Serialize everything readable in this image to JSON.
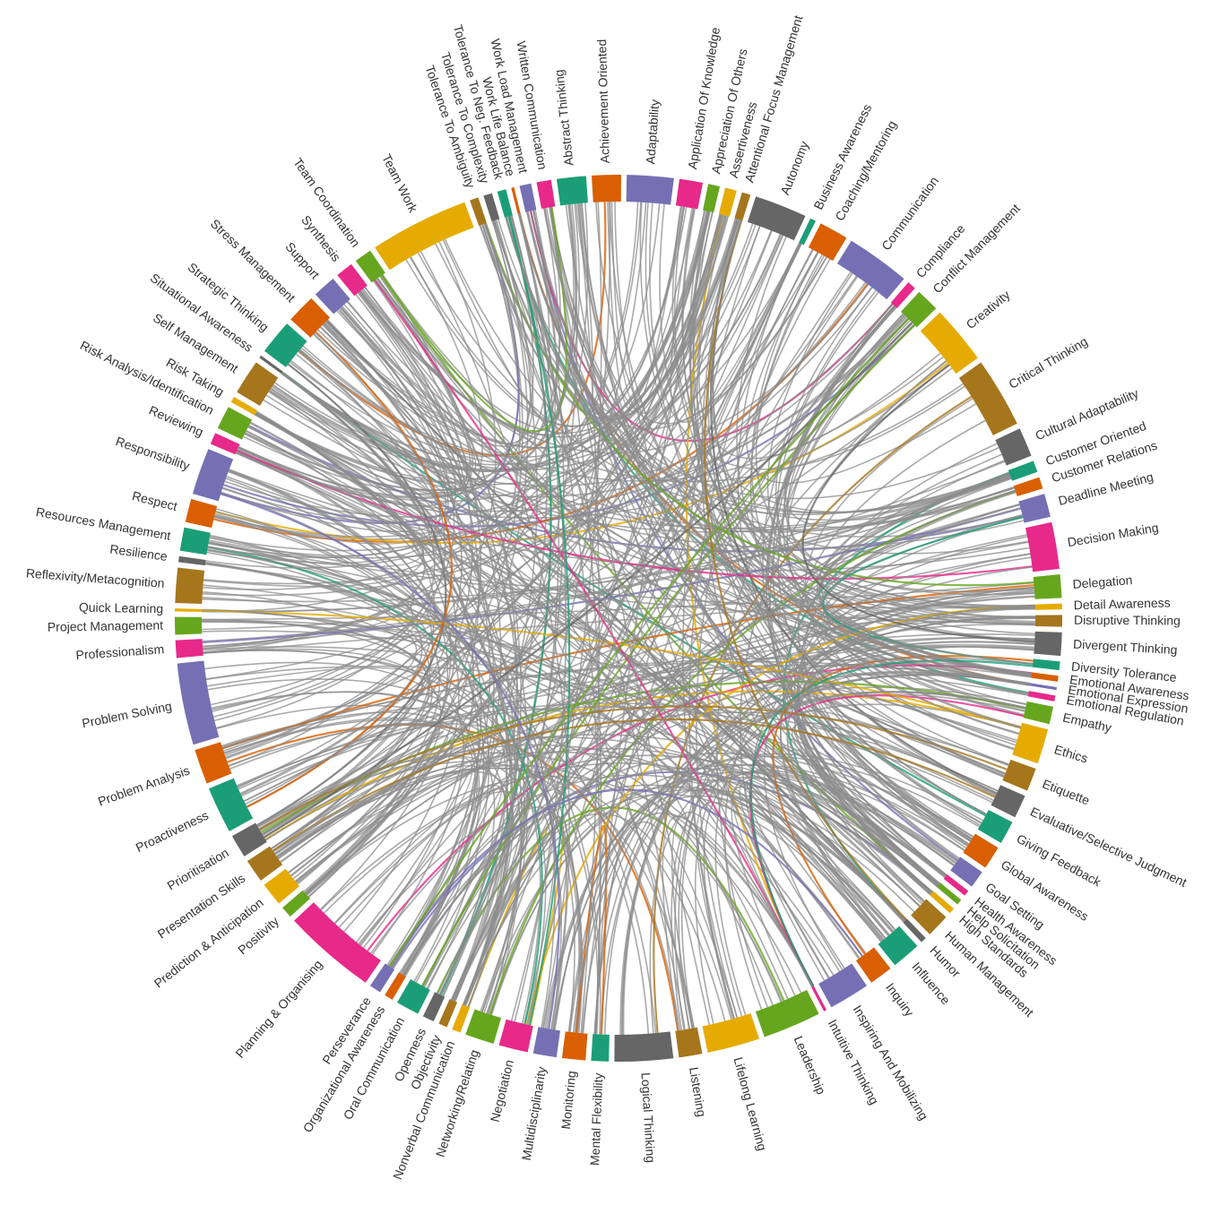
{
  "chart_data": {
    "type": "chord",
    "palette": [
      "#1b9e77",
      "#d95f02",
      "#7570b3",
      "#e7298a",
      "#66a61e",
      "#e6ab02",
      "#a6761d",
      "#666666"
    ],
    "link_color": "#8c8c8c",
    "nodes": [
      {
        "name": "Abstract Thinking",
        "weight": 5
      },
      {
        "name": "Achievement Oriented",
        "weight": 5
      },
      {
        "name": "Adaptability",
        "weight": 8
      },
      {
        "name": "Application Of Knowledge",
        "weight": 4
      },
      {
        "name": "Appreciation Of Others",
        "weight": 2
      },
      {
        "name": "Assertiveness",
        "weight": 2
      },
      {
        "name": "Attentional Focus Management",
        "weight": 1.5
      },
      {
        "name": "Autonomy",
        "weight": 9
      },
      {
        "name": "Business Awareness",
        "weight": 1
      },
      {
        "name": "Coaching/Mentoring",
        "weight": 5
      },
      {
        "name": "Communication",
        "weight": 11
      },
      {
        "name": "Compliance",
        "weight": 1.5
      },
      {
        "name": "Conflict Management",
        "weight": 4
      },
      {
        "name": "Creativity",
        "weight": 10
      },
      {
        "name": "Critical Thinking",
        "weight": 12
      },
      {
        "name": "Cultural Adaptability",
        "weight": 5
      },
      {
        "name": "Customer Oriented",
        "weight": 2
      },
      {
        "name": "Customer Relations",
        "weight": 2
      },
      {
        "name": "Deadline Meeting",
        "weight": 4
      },
      {
        "name": "Decision Making",
        "weight": 8
      },
      {
        "name": "Delegation",
        "weight": 4
      },
      {
        "name": "Detail Awareness",
        "weight": 1
      },
      {
        "name": "Disruptive Thinking",
        "weight": 2
      },
      {
        "name": "Divergent Thinking",
        "weight": 4
      },
      {
        "name": "Diversity Tolerance",
        "weight": 1.5
      },
      {
        "name": "Emotional Awareness",
        "weight": 1
      },
      {
        "name": "Emotional Expression",
        "weight": 0.5
      },
      {
        "name": "Emotional Regulation",
        "weight": 1
      },
      {
        "name": "Empathy",
        "weight": 3
      },
      {
        "name": "Ethics",
        "weight": 6
      },
      {
        "name": "Etiquette",
        "weight": 4
      },
      {
        "name": "Evaluative/Selective Judgment",
        "weight": 4
      },
      {
        "name": "Giving Feedback",
        "weight": 4
      },
      {
        "name": "Global Awareness",
        "weight": 4
      },
      {
        "name": "Goal Setting",
        "weight": 3
      },
      {
        "name": "Health Awareness",
        "weight": 1
      },
      {
        "name": "Help Solicitation",
        "weight": 1
      },
      {
        "name": "High Standards",
        "weight": 1
      },
      {
        "name": "Human Management",
        "weight": 4
      },
      {
        "name": "Humor",
        "weight": 1
      },
      {
        "name": "Influence",
        "weight": 5
      },
      {
        "name": "Inquiry",
        "weight": 4
      },
      {
        "name": "Inspiring And Mobilizing",
        "weight": 7
      },
      {
        "name": "Intuitive Thinking",
        "weight": 0.5
      },
      {
        "name": "Leadership",
        "weight": 10
      },
      {
        "name": "Lifelong Learning",
        "weight": 9
      },
      {
        "name": "Listening",
        "weight": 4
      },
      {
        "name": "Logical Thinking",
        "weight": 10
      },
      {
        "name": "Mental Flexibility",
        "weight": 3
      },
      {
        "name": "Monitoring",
        "weight": 4
      },
      {
        "name": "Multidisciplinarity",
        "weight": 4
      },
      {
        "name": "Negotiation",
        "weight": 5
      },
      {
        "name": "Networking/Relating",
        "weight": 5
      },
      {
        "name": "Nonverbal Communication",
        "weight": 1.5
      },
      {
        "name": "Objectivity",
        "weight": 1.5
      },
      {
        "name": "Openness",
        "weight": 2
      },
      {
        "name": "Oral Communication",
        "weight": 4
      },
      {
        "name": "Organizational Awareness",
        "weight": 1.5
      },
      {
        "name": "Perseverance",
        "weight": 2
      },
      {
        "name": "Planning & Organising",
        "weight": 16
      },
      {
        "name": "Positivity",
        "weight": 2
      },
      {
        "name": "Prediction & Anticipation",
        "weight": 4
      },
      {
        "name": "Presentation Skills",
        "weight": 4
      },
      {
        "name": "Prioritisation",
        "weight": 4
      },
      {
        "name": "Proactiveness",
        "weight": 8
      },
      {
        "name": "Problem Analysis",
        "weight": 6
      },
      {
        "name": "Problem Solving",
        "weight": 14
      },
      {
        "name": "Professionalism",
        "weight": 3
      },
      {
        "name": "Project Management",
        "weight": 3
      },
      {
        "name": "Quick Learning",
        "weight": 0.5
      },
      {
        "name": "Reflexivity/Metacognition",
        "weight": 6
      },
      {
        "name": "Resilience",
        "weight": 1
      },
      {
        "name": "Resources Management",
        "weight": 4
      },
      {
        "name": "Respect",
        "weight": 4
      },
      {
        "name": "Responsibility",
        "weight": 8
      },
      {
        "name": "Reviewing",
        "weight": 2
      },
      {
        "name": "Risk Analysis/Identification",
        "weight": 4
      },
      {
        "name": "Risk Taking",
        "weight": 1
      },
      {
        "name": "Self Management",
        "weight": 6
      },
      {
        "name": "Situational Awareness",
        "weight": 0.5
      },
      {
        "name": "Strategic Thinking",
        "weight": 6
      },
      {
        "name": "Stress Management",
        "weight": 5
      },
      {
        "name": "Support",
        "weight": 4
      },
      {
        "name": "Synthesis",
        "weight": 3
      },
      {
        "name": "Team Coordination",
        "weight": 3
      },
      {
        "name": "Team Work",
        "weight": 17
      },
      {
        "name": "Tolerance To Ambiguity",
        "weight": 1.5
      },
      {
        "name": "Tolerance To Complexity",
        "weight": 1.5
      },
      {
        "name": "Tolerance To Neg. Feedback",
        "weight": 1.5
      },
      {
        "name": "Work Life Balance",
        "weight": 0.5
      },
      {
        "name": "Work Load Management",
        "weight": 2
      },
      {
        "name": "Written Communication",
        "weight": 2.5
      }
    ]
  }
}
